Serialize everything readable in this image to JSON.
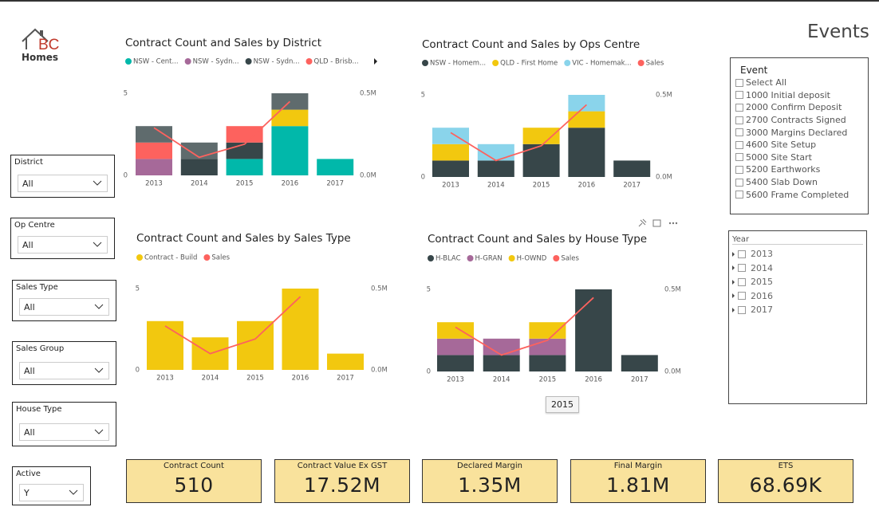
{
  "logo": {
    "initials": "BC",
    "name": "Homes"
  },
  "page_title": "Events",
  "slicers": [
    {
      "label": "District",
      "value": "All"
    },
    {
      "label": "Op Centre",
      "value": "All"
    },
    {
      "label": "Sales Type",
      "value": "All"
    },
    {
      "label": "Sales Group",
      "value": "All"
    },
    {
      "label": "House Type",
      "value": "All"
    },
    {
      "label": "Active",
      "value": "Y"
    }
  ],
  "chart_data": [
    {
      "type": "bar",
      "title": "Contract Count and Sales by District",
      "stacked": true,
      "categories": [
        "2013",
        "2014",
        "2015",
        "2016",
        "2017"
      ],
      "series": [
        {
          "name": "NSW - Cent...",
          "color": "#01b8aa",
          "values": [
            0,
            0,
            1,
            3,
            1
          ]
        },
        {
          "name": "NSW - Sydn...",
          "color": "#a66999",
          "values": [
            1,
            0,
            0,
            0,
            0
          ]
        },
        {
          "name": "NSW - Sydn...",
          "color": "#374649",
          "values": [
            0,
            1,
            1,
            0,
            0
          ]
        },
        {
          "name": "QLD - Brisb...",
          "color": "#fd625e",
          "values": [
            1,
            0,
            1,
            0,
            0
          ]
        },
        {
          "color": "#f2c80f",
          "values": [
            0,
            0,
            0,
            1,
            0
          ]
        },
        {
          "color": "#5f6b6d",
          "values": [
            1,
            1,
            0,
            1,
            0
          ]
        },
        {
          "color": "#fd625e",
          "type": "line",
          "axis": "y2",
          "values": [
            0.29,
            0.11,
            0.19,
            0.45,
            null
          ]
        }
      ],
      "ylim": [
        0,
        5
      ],
      "yticks": [
        0,
        5
      ],
      "y2lim": [
        0,
        0.5
      ],
      "y2ticks": [
        {
          "value": 0,
          "label": "0.0M"
        },
        {
          "value": 0.5,
          "label": "0.5M"
        }
      ]
    },
    {
      "type": "bar",
      "title": "Contract Count and Sales by Ops Centre",
      "stacked": true,
      "categories": [
        "2013",
        "2014",
        "2015",
        "2016",
        "2017"
      ],
      "series": [
        {
          "name": "NSW - Homem...",
          "color": "#374649",
          "values": [
            1,
            1,
            2,
            3,
            1
          ]
        },
        {
          "name": "QLD - First Home",
          "color": "#f2c80f",
          "values": [
            1,
            0,
            1,
            1,
            0
          ]
        },
        {
          "name": "VIC - Homemak...",
          "color": "#8ad4eb",
          "values": [
            1,
            1,
            0,
            1,
            0
          ]
        },
        {
          "name": "Sales",
          "color": "#fd625e",
          "type": "line",
          "axis": "y2",
          "values": [
            0.27,
            0.1,
            0.19,
            0.44,
            null
          ]
        }
      ],
      "ylim": [
        0,
        5
      ],
      "yticks": [
        0,
        5
      ],
      "y2lim": [
        0,
        0.5
      ],
      "y2ticks": [
        {
          "value": 0,
          "label": "0.0M"
        },
        {
          "value": 0.5,
          "label": "0.5M"
        }
      ]
    },
    {
      "type": "bar",
      "title": "Contract Count and Sales by Sales Type",
      "stacked": true,
      "categories": [
        "2013",
        "2014",
        "2015",
        "2016",
        "2017"
      ],
      "series": [
        {
          "name": "Contract - Build",
          "color": "#f2c80f",
          "values": [
            3,
            2,
            3,
            5,
            1
          ]
        },
        {
          "name": "Sales",
          "color": "#fd625e",
          "type": "line",
          "axis": "y2",
          "values": [
            0.27,
            0.1,
            0.19,
            0.45,
            null
          ]
        }
      ],
      "ylim": [
        0,
        5
      ],
      "yticks": [
        0,
        5
      ],
      "y2lim": [
        0,
        0.5
      ],
      "y2ticks": [
        {
          "value": 0,
          "label": "0.0M"
        },
        {
          "value": 0.5,
          "label": "0.5M"
        }
      ]
    },
    {
      "type": "bar",
      "title": "Contract Count and Sales by House Type",
      "stacked": true,
      "categories": [
        "2013",
        "2014",
        "2015",
        "2016",
        "2017"
      ],
      "series": [
        {
          "name": "H-BLAC",
          "color": "#374649",
          "values": [
            1,
            1,
            1,
            5,
            1
          ]
        },
        {
          "name": "H-GRAN",
          "color": "#a66999",
          "values": [
            1,
            1,
            1,
            0,
            0
          ]
        },
        {
          "name": "H-OWND",
          "color": "#f2c80f",
          "values": [
            1,
            0,
            1,
            0,
            0
          ]
        },
        {
          "name": "Sales",
          "color": "#fd625e",
          "type": "line",
          "axis": "y2",
          "values": [
            0.27,
            0.1,
            0.19,
            0.45,
            null
          ]
        }
      ],
      "ylim": [
        0,
        5
      ],
      "yticks": [
        0,
        5
      ],
      "y2lim": [
        0,
        0.5
      ],
      "y2ticks": [
        {
          "value": 0,
          "label": "0.0M"
        },
        {
          "value": 0.5,
          "label": "0.5M"
        }
      ]
    }
  ],
  "tooltip": "2015",
  "event_filter": {
    "title": "Event",
    "items": [
      "Select All",
      "1000 Initial deposit",
      "2000 Confirm Deposit",
      "2700 Contracts Signed",
      "3000 Margins Declared",
      "4600 Site Setup",
      "5000 Site Start",
      "5200 Earthworks",
      "5400 Slab Down",
      "5600 Frame Completed"
    ]
  },
  "year_filter": {
    "title": "Year",
    "items": [
      "2013",
      "2014",
      "2015",
      "2016",
      "2017"
    ]
  },
  "cards": [
    {
      "label": "Contract Count",
      "value": "510"
    },
    {
      "label": "Contract Value Ex GST",
      "value": "17.52M"
    },
    {
      "label": "Declared Margin",
      "value": "1.35M"
    },
    {
      "label": "Final Margin",
      "value": "1.81M"
    },
    {
      "label": "ETS",
      "value": "68.69K"
    }
  ]
}
